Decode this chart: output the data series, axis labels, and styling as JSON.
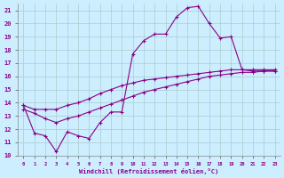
{
  "xlabel": "Windchill (Refroidissement éolien,°C)",
  "xlim": [
    -0.5,
    23.5
  ],
  "ylim": [
    10,
    21.5
  ],
  "xticks": [
    0,
    1,
    2,
    3,
    4,
    5,
    6,
    7,
    8,
    9,
    10,
    11,
    12,
    13,
    14,
    15,
    16,
    17,
    18,
    19,
    20,
    21,
    22,
    23
  ],
  "yticks": [
    10,
    11,
    12,
    13,
    14,
    15,
    16,
    17,
    18,
    19,
    20,
    21
  ],
  "bg_color": "#cceeff",
  "line_color": "#880088",
  "grid_color": "#aacccc",
  "lines": [
    {
      "x": [
        0,
        1,
        2,
        3,
        4,
        5,
        6,
        7,
        8,
        9,
        10,
        11,
        12,
        13,
        14,
        15,
        16,
        17,
        18,
        19,
        20,
        21,
        22,
        23
      ],
      "y": [
        13.8,
        13.5,
        13.5,
        13.5,
        13.8,
        14.0,
        14.3,
        14.7,
        15.0,
        15.3,
        15.5,
        15.7,
        15.8,
        15.9,
        16.0,
        16.1,
        16.2,
        16.3,
        16.4,
        16.5,
        16.5,
        16.5,
        16.5,
        16.5
      ]
    },
    {
      "x": [
        0,
        1,
        2,
        3,
        4,
        5,
        6,
        7,
        8,
        9,
        10,
        11,
        12,
        13,
        14,
        15,
        16,
        17,
        18,
        19,
        20,
        21,
        22,
        23
      ],
      "y": [
        13.5,
        13.2,
        12.8,
        12.5,
        12.8,
        13.0,
        13.3,
        13.6,
        13.9,
        14.2,
        14.5,
        14.8,
        15.0,
        15.2,
        15.4,
        15.6,
        15.8,
        16.0,
        16.1,
        16.2,
        16.3,
        16.3,
        16.4,
        16.4
      ]
    },
    {
      "x": [
        0,
        1,
        2,
        3,
        4,
        5,
        6,
        7,
        8,
        9,
        10,
        11,
        12,
        13,
        14,
        15,
        16,
        17,
        18,
        19,
        20,
        21,
        22,
        23
      ],
      "y": [
        13.8,
        11.7,
        11.5,
        10.3,
        11.8,
        11.5,
        11.3,
        12.5,
        13.3,
        13.3,
        17.7,
        18.7,
        19.2,
        19.2,
        20.5,
        21.2,
        21.3,
        20.0,
        18.9,
        19.0,
        16.5,
        16.4,
        16.4,
        16.4
      ]
    }
  ]
}
